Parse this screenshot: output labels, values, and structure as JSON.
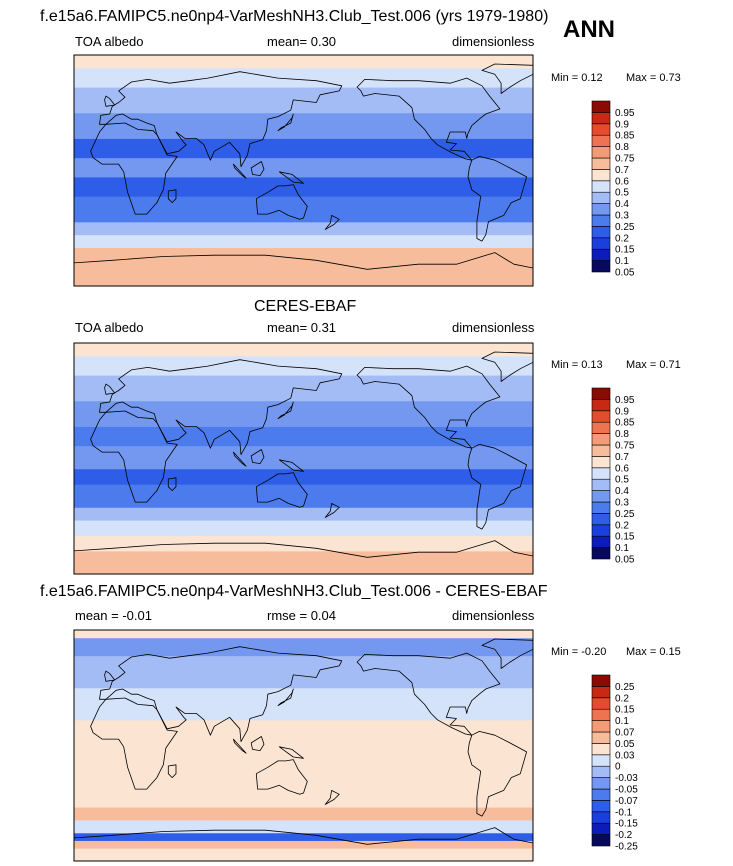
{
  "ann_label": "ANN",
  "chart_data": [
    {
      "type": "heatmap",
      "title": "f.e15a6.FAMIPC5.ne0np4-VarMeshNH3.Club_Test.006 (yrs 1979-1980)",
      "left_label": "TOA albedo",
      "center_label": "mean=  0.30",
      "right_label": "dimensionless",
      "min_label": "Min =  0.12",
      "max_label": "Max =  0.73",
      "levels": [
        0.05,
        0.1,
        0.15,
        0.2,
        0.25,
        0.3,
        0.4,
        0.5,
        0.6,
        0.7,
        0.75,
        0.8,
        0.85,
        0.9,
        0.95
      ],
      "level_labels": [
        "0.05",
        "0.1",
        "0.15",
        "0.2",
        "0.25",
        "0.3",
        "0.4",
        "0.5",
        "0.6",
        "0.7",
        "0.75",
        "0.8",
        "0.85",
        "0.9",
        "0.95"
      ],
      "colors": [
        "#08085f",
        "#0c1cb8",
        "#1a3fdc",
        "#2e5ee8",
        "#4b7bec",
        "#7498f0",
        "#a3bcf5",
        "#d4e2fa",
        "#fbe4d2",
        "#f6bc9c",
        "#f39a76",
        "#ee7352",
        "#e54b2c",
        "#c72a14",
        "#8b0b04"
      ],
      "bands": [
        {
          "lat": [
            -90,
            -75
          ],
          "value": 0.7
        },
        {
          "lat": [
            -75,
            -60
          ],
          "value": 0.62
        },
        {
          "lat": [
            -60,
            -50
          ],
          "value": 0.45
        },
        {
          "lat": [
            -50,
            -40
          ],
          "value": 0.35
        },
        {
          "lat": [
            -40,
            -20
          ],
          "value": 0.22
        },
        {
          "lat": [
            -20,
            -5
          ],
          "value": 0.18
        },
        {
          "lat": [
            -5,
            10
          ],
          "value": 0.28
        },
        {
          "lat": [
            10,
            25
          ],
          "value": 0.2
        },
        {
          "lat": [
            25,
            45
          ],
          "value": 0.28
        },
        {
          "lat": [
            45,
            65
          ],
          "value": 0.38
        },
        {
          "lat": [
            65,
            80
          ],
          "value": 0.5
        },
        {
          "lat": [
            80,
            90
          ],
          "value": 0.6
        }
      ]
    },
    {
      "type": "heatmap",
      "title": "CERES-EBAF",
      "left_label": "TOA albedo",
      "center_label": "mean=  0.31",
      "right_label": "dimensionless",
      "min_label": "Min =  0.13",
      "max_label": "Max =  0.71",
      "levels": [
        0.05,
        0.1,
        0.15,
        0.2,
        0.25,
        0.3,
        0.4,
        0.5,
        0.6,
        0.7,
        0.75,
        0.8,
        0.85,
        0.9,
        0.95
      ],
      "level_labels": [
        "0.05",
        "0.1",
        "0.15",
        "0.2",
        "0.25",
        "0.3",
        "0.4",
        "0.5",
        "0.6",
        "0.7",
        "0.75",
        "0.8",
        "0.85",
        "0.9",
        "0.95"
      ],
      "colors": [
        "#08085f",
        "#0c1cb8",
        "#1a3fdc",
        "#2e5ee8",
        "#4b7bec",
        "#7498f0",
        "#a3bcf5",
        "#d4e2fa",
        "#fbe4d2",
        "#f6bc9c",
        "#f39a76",
        "#ee7352",
        "#e54b2c",
        "#c72a14",
        "#8b0b04"
      ],
      "bands": [
        {
          "lat": [
            -90,
            -72
          ],
          "value": 0.62
        },
        {
          "lat": [
            -72,
            -60
          ],
          "value": 0.52
        },
        {
          "lat": [
            -60,
            -48
          ],
          "value": 0.42
        },
        {
          "lat": [
            -48,
            -38
          ],
          "value": 0.33
        },
        {
          "lat": [
            -38,
            -20
          ],
          "value": 0.24
        },
        {
          "lat": [
            -20,
            -8
          ],
          "value": 0.18
        },
        {
          "lat": [
            -8,
            10
          ],
          "value": 0.26
        },
        {
          "lat": [
            10,
            25
          ],
          "value": 0.22
        },
        {
          "lat": [
            25,
            45
          ],
          "value": 0.3
        },
        {
          "lat": [
            45,
            65
          ],
          "value": 0.36
        },
        {
          "lat": [
            65,
            80
          ],
          "value": 0.45
        },
        {
          "lat": [
            80,
            90
          ],
          "value": 0.55
        }
      ]
    },
    {
      "type": "heatmap",
      "title": "f.e15a6.FAMIPC5.ne0np4-VarMeshNH3.Club_Test.006 - CERES-EBAF",
      "left_label": "mean =  -0.01",
      "center_label": "rmse =  0.04",
      "right_label": "dimensionless",
      "min_label": "Min =  -0.20",
      "max_label": "Max =  0.15",
      "levels": [
        -0.25,
        -0.2,
        -0.15,
        -0.1,
        -0.07,
        -0.05,
        -0.03,
        0,
        0.03,
        0.05,
        0.07,
        0.1,
        0.15,
        0.2,
        0.25
      ],
      "level_labels": [
        "-0.25",
        "-0.2",
        "-0.15",
        "-0.1",
        "-0.07",
        "-0.05",
        "-0.03",
        "0",
        "0.03",
        "0.05",
        "0.07",
        "0.1",
        "0.15",
        "0.2",
        "0.25"
      ],
      "colors": [
        "#08085f",
        "#0c1cb8",
        "#1a3fdc",
        "#2e5ee8",
        "#4b7bec",
        "#7498f0",
        "#a3bcf5",
        "#d4e2fa",
        "#fbe4d2",
        "#f6bc9c",
        "#f39a76",
        "#ee7352",
        "#e54b2c",
        "#c72a14",
        "#8b0b04"
      ],
      "bands": [
        {
          "lat": [
            -90,
            -80
          ],
          "value": 0.02
        },
        {
          "lat": [
            -80,
            -74
          ],
          "value": 0.04
        },
        {
          "lat": [
            -74,
            -68
          ],
          "value": -0.12
        },
        {
          "lat": [
            -68,
            -58
          ],
          "value": -0.02
        },
        {
          "lat": [
            -58,
            -48
          ],
          "value": 0.04
        },
        {
          "lat": [
            -48,
            -38
          ],
          "value": 0.01
        },
        {
          "lat": [
            -38,
            -20
          ],
          "value": 0.02
        },
        {
          "lat": [
            -20,
            0
          ],
          "value": 0.01
        },
        {
          "lat": [
            0,
            20
          ],
          "value": 0.02
        },
        {
          "lat": [
            20,
            45
          ],
          "value": -0.01
        },
        {
          "lat": [
            45,
            70
          ],
          "value": -0.03
        },
        {
          "lat": [
            70,
            84
          ],
          "value": -0.06
        },
        {
          "lat": [
            84,
            90
          ],
          "value": 0.03
        }
      ]
    }
  ]
}
